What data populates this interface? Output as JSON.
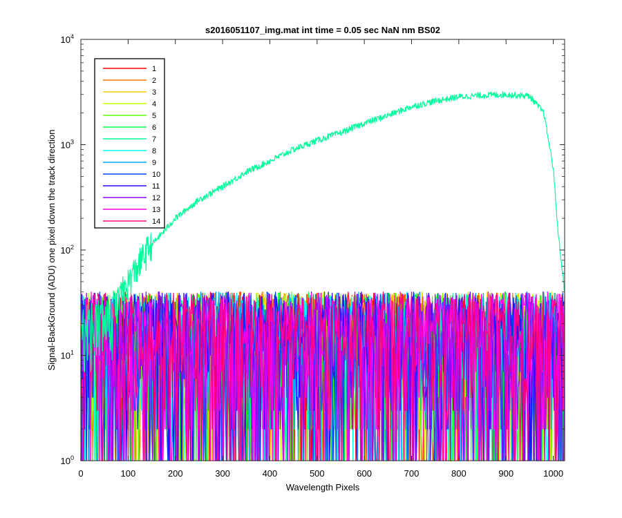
{
  "chart_data": {
    "type": "line",
    "title": "s2016051107_img.mat int time = 0.05 sec  NaN nm BS02",
    "xlabel": "Wavelength Pixels",
    "ylabel": "Signal-BackGround (ADU) one pixel down the track direction",
    "xlim": [
      0,
      1024
    ],
    "ylim": [
      1,
      10000
    ],
    "yscale": "log",
    "xticks": [
      0,
      100,
      200,
      300,
      400,
      500,
      600,
      700,
      800,
      900,
      1000
    ],
    "yticks": [
      {
        "value": 1,
        "base": "10",
        "exp": "0"
      },
      {
        "value": 10,
        "base": "10",
        "exp": "1"
      },
      {
        "value": 100,
        "base": "10",
        "exp": "2"
      },
      {
        "value": 1000,
        "base": "10",
        "exp": "3"
      },
      {
        "value": 10000,
        "base": "10",
        "exp": "4"
      }
    ],
    "grid": false,
    "legend_position": "top-left",
    "signal_series": {
      "name": "7",
      "points": [
        [
          0,
          20
        ],
        [
          60,
          25
        ],
        [
          100,
          50
        ],
        [
          140,
          100
        ],
        [
          200,
          200
        ],
        [
          250,
          300
        ],
        [
          300,
          400
        ],
        [
          350,
          550
        ],
        [
          400,
          700
        ],
        [
          450,
          900
        ],
        [
          500,
          1100
        ],
        [
          550,
          1300
        ],
        [
          600,
          1600
        ],
        [
          650,
          1900
        ],
        [
          700,
          2300
        ],
        [
          750,
          2600
        ],
        [
          800,
          2850
        ],
        [
          850,
          2950
        ],
        [
          900,
          3000
        ],
        [
          950,
          2900
        ],
        [
          980,
          2000
        ],
        [
          1000,
          600
        ],
        [
          1010,
          150
        ],
        [
          1024,
          40
        ]
      ]
    },
    "noise_range": [
      1,
      40
    ],
    "series": [
      {
        "name": "1",
        "color": "#ff0000"
      },
      {
        "name": "2",
        "color": "#ff7300"
      },
      {
        "name": "3",
        "color": "#ffcc00"
      },
      {
        "name": "4",
        "color": "#c8ff00"
      },
      {
        "name": "5",
        "color": "#5aff00"
      },
      {
        "name": "6",
        "color": "#00ff45"
      },
      {
        "name": "7",
        "color": "#00ff9c"
      },
      {
        "name": "8",
        "color": "#00ffee"
      },
      {
        "name": "9",
        "color": "#00a8ff"
      },
      {
        "name": "10",
        "color": "#0040ff"
      },
      {
        "name": "11",
        "color": "#3300ff"
      },
      {
        "name": "12",
        "color": "#9900ff"
      },
      {
        "name": "13",
        "color": "#ff00ee"
      },
      {
        "name": "14",
        "color": "#ff0080"
      }
    ]
  }
}
